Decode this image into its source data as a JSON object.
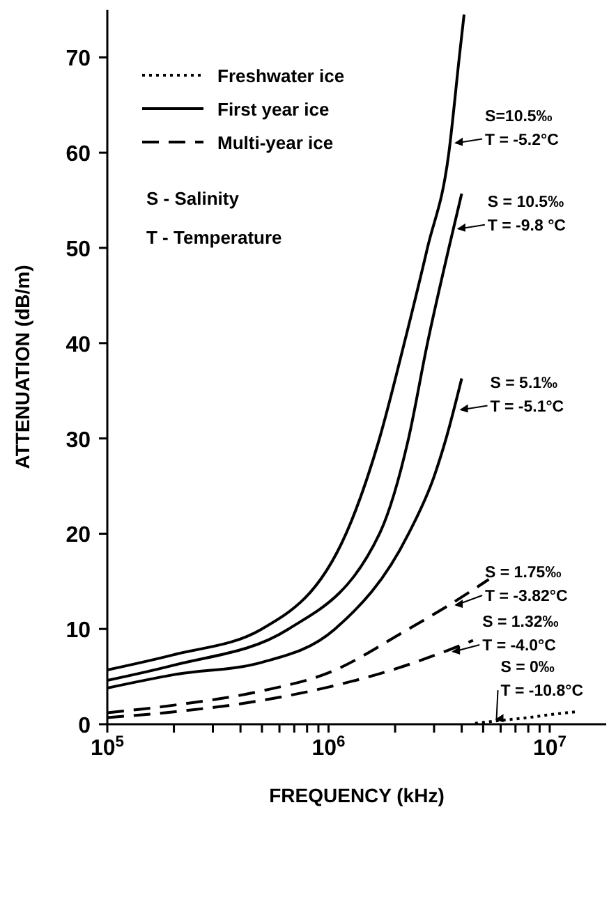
{
  "chart_data": {
    "type": "line",
    "xlabel": "FREQUENCY (kHz)",
    "ylabel": "ATTENUATION (dB/m)",
    "log": "x",
    "xlim": [
      100000,
      18000000
    ],
    "ylim": [
      0,
      75
    ],
    "xticks": [
      {
        "value": 100000,
        "label": "10$^{5}$"
      },
      {
        "value": 200000,
        "label": null
      },
      {
        "value": 300000,
        "label": null
      },
      {
        "value": 400000,
        "label": null
      },
      {
        "value": 500000,
        "label": null
      },
      {
        "value": 600000,
        "label": null
      },
      {
        "value": 700000,
        "label": null
      },
      {
        "value": 800000,
        "label": null
      },
      {
        "value": 900000,
        "label": null
      },
      {
        "value": 1000000,
        "label": "10$^{6}$"
      },
      {
        "value": 2000000,
        "label": null
      },
      {
        "value": 3000000,
        "label": null
      },
      {
        "value": 4000000,
        "label": null
      },
      {
        "value": 5000000,
        "label": null
      },
      {
        "value": 6000000,
        "label": null
      },
      {
        "value": 7000000,
        "label": null
      },
      {
        "value": 8000000,
        "label": null
      },
      {
        "value": 9000000,
        "label": null
      },
      {
        "value": 10000000,
        "label": "10$^{7}$"
      }
    ],
    "yticks": [
      0,
      10,
      20,
      30,
      40,
      50,
      60,
      70
    ],
    "grid": false,
    "legend": "top left",
    "marker": "none",
    "series": [
      {
        "name": "Freshwater ice",
        "color": "#000000",
        "line_style": "dotted",
        "x": [
          4600000,
          6000000,
          8000000,
          10000000,
          13000000
        ],
        "values": [
          0.1,
          0.4,
          0.7,
          1.0,
          1.3
        ]
      },
      {
        "name": "First year ice",
        "color": "#000000",
        "line_style": "solid",
        "x": [
          100000,
          200000,
          500000,
          1200000,
          1700000,
          2200000,
          2800000,
          3500000,
          3900000,
          4100000
        ],
        "values": [
          5.7,
          7.3,
          10,
          20,
          30,
          40,
          50,
          60,
          70,
          74.5
        ]
      },
      {
        "color": "#000000",
        "line_style": "solid",
        "x": [
          100000,
          200000,
          660000,
          1700000,
          2300000,
          2800000,
          3500000,
          4000000
        ],
        "values": [
          4.6,
          6.2,
          10,
          20,
          30,
          40,
          50,
          55.7
        ]
      },
      {
        "color": "#000000",
        "line_style": "solid",
        "x": [
          100000,
          200000,
          500000,
          1070000,
          2300000,
          3000000,
          3400000,
          4000000
        ],
        "values": [
          3.8,
          5.2,
          6.5,
          10,
          20,
          26,
          30,
          36.3
        ]
      },
      {
        "name": "Multi-year ice",
        "color": "#000000",
        "line_style": "dashed",
        "x": [
          100000,
          200000,
          500000,
          1000000,
          2300000,
          3500000,
          5300000
        ],
        "values": [
          1.2,
          2.0,
          3.5,
          5.4,
          10,
          12.5,
          15.2
        ]
      },
      {
        "color": "#000000",
        "line_style": "dashed",
        "x": [
          100000,
          200000,
          500000,
          1000000,
          2000000,
          3500000,
          4500000
        ],
        "values": [
          0.7,
          1.3,
          2.5,
          3.9,
          5.8,
          7.8,
          8.8
        ]
      }
    ],
    "annotations": [
      "S - Salinity",
      "T - Temperature",
      {
        "text": "S=10.5‰\nT = -5.2°C",
        "x": 3600000,
        "y": 61
      },
      {
        "text": "S = 10.5‰\nT = -9.8 °C",
        "x": 3700000,
        "y": 52
      },
      {
        "text": "S = 5.1‰\nT = -5.1°C",
        "x": 3800000,
        "y": 33
      },
      {
        "text": "S = 1.75‰\nT = -3.82°C",
        "x": 3600000,
        "y": 12.5
      },
      {
        "text": "S = 1.32‰\nT = -4.0°C",
        "x": 3500000,
        "y": 7.6
      },
      {
        "text": "S = 0‰\nT = -10.8°C",
        "x": 5500000,
        "y": 0.5
      }
    ]
  }
}
